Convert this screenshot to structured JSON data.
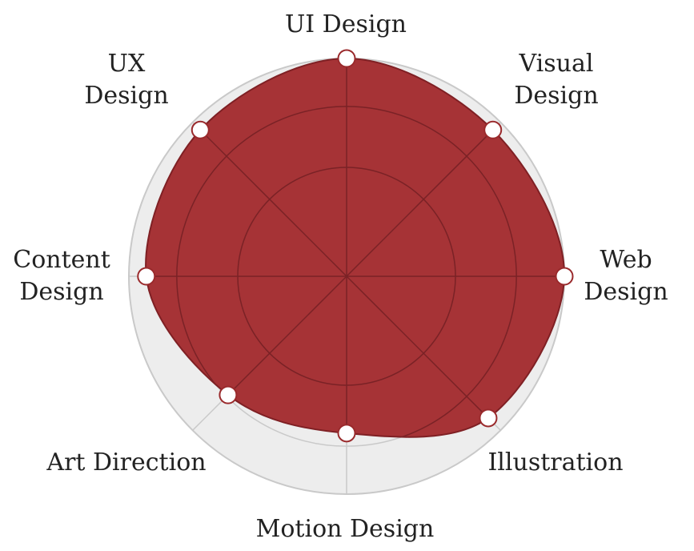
{
  "chart_data": {
    "type": "radar",
    "title": "",
    "axes": [
      {
        "label_lines": [
          "UI Design"
        ],
        "value": 1.0
      },
      {
        "label_lines": [
          "Visual",
          "Design"
        ],
        "value": 0.95
      },
      {
        "label_lines": [
          "Web",
          "Design"
        ],
        "value": 1.0
      },
      {
        "label_lines": [
          "Illustration"
        ],
        "value": 0.92
      },
      {
        "label_lines": [
          "Motion Design"
        ],
        "value": 0.72
      },
      {
        "label_lines": [
          "Art Direction"
        ],
        "value": 0.77
      },
      {
        "label_lines": [
          "Content",
          "Design"
        ],
        "value": 0.92
      },
      {
        "label_lines": [
          "UX",
          "Design"
        ],
        "value": 0.95
      }
    ],
    "range": [
      0,
      1
    ],
    "rings": [
      0.5,
      0.78,
      1.0
    ],
    "grid": true,
    "colors": {
      "fill": "#a63336",
      "stroke": "#7f2024",
      "grid_inner": "#7a2226",
      "background_disc": "#ededed",
      "background_ring": "#c9c9c9",
      "marker_fill": "#ffffff",
      "marker_stroke": "#9a2a2c"
    }
  }
}
